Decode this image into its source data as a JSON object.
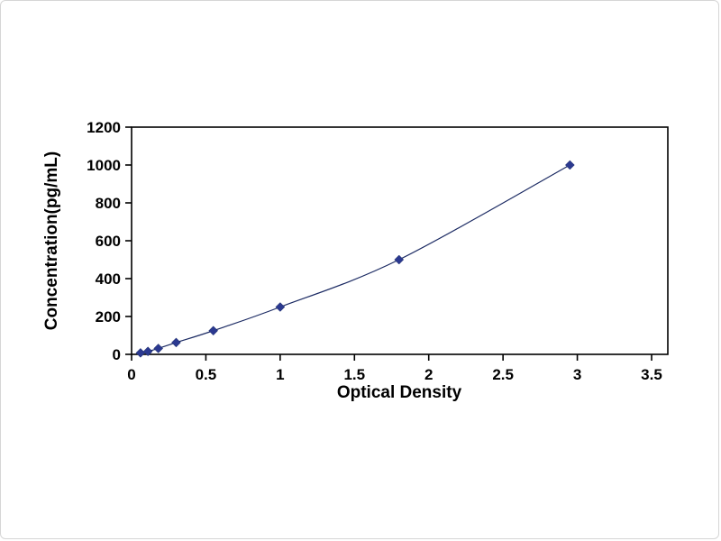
{
  "figure": {
    "background": "#ffffff",
    "border_color": "#d6d6d6"
  },
  "chart_data": {
    "type": "line",
    "title": "",
    "xlabel": "Optical Density",
    "ylabel": "Concentration(pg/mL)",
    "series": [
      {
        "name": "standard-curve",
        "x": [
          0.06,
          0.11,
          0.18,
          0.3,
          0.55,
          1.0,
          1.8,
          2.95
        ],
        "y": [
          7.8,
          15.6,
          31.2,
          62.5,
          125,
          250,
          500,
          1000
        ]
      }
    ],
    "xlim": [
      0,
      3.5
    ],
    "ylim": [
      0,
      1200
    ],
    "xticks": [
      0,
      0.5,
      1,
      1.5,
      2,
      2.5,
      3,
      3.5
    ],
    "xtick_labels": [
      "0",
      "0.5",
      "1",
      "1.5",
      "2",
      "2.5",
      "3",
      "3.5"
    ],
    "yticks": [
      0,
      200,
      400,
      600,
      800,
      1000,
      1200
    ],
    "ytick_labels": [
      "0",
      "200",
      "400",
      "600",
      "800",
      "1000",
      "1200"
    ],
    "grid": false,
    "legend_position": "none",
    "marker": "diamond",
    "colors": {
      "line": "#1b2a63",
      "marker": "#2b3990",
      "axis": "#000000",
      "text": "#000000"
    }
  }
}
